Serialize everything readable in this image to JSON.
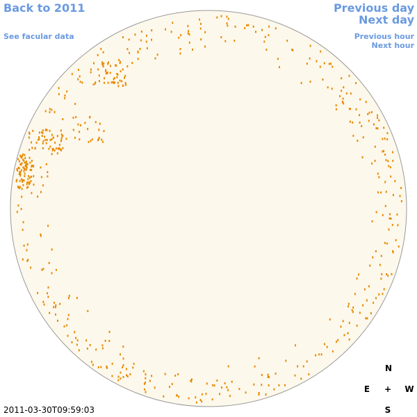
{
  "nav": {
    "back_year": "Back to 2011",
    "facular": "See facular data",
    "previous_day": "Previous day",
    "next_day": "Next day",
    "previous_hour": "Previous hour",
    "next_hour": "Next hour"
  },
  "compass": {
    "north": "N",
    "east": "E",
    "center": "+",
    "west": "W",
    "south": "S"
  },
  "timestamp": "2011-03-30T09:59:03"
}
